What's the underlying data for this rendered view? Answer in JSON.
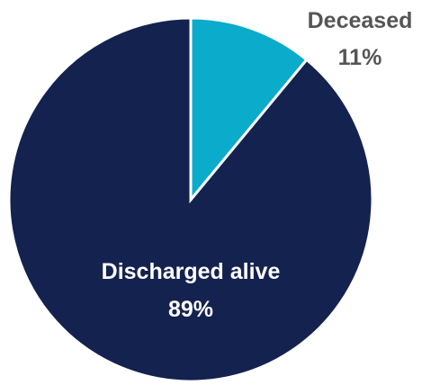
{
  "chart_data": {
    "type": "pie",
    "slices": [
      {
        "label": "Deceased",
        "value": 11,
        "value_label": "11%",
        "color": "#0aabcb",
        "label_color": "#555555"
      },
      {
        "label": "Discharged alive",
        "value": 89,
        "value_label": "89%",
        "color": "#14224f",
        "label_color": "#ffffff"
      }
    ],
    "start_angle": "12 o'clock",
    "direction": "clockwise"
  }
}
